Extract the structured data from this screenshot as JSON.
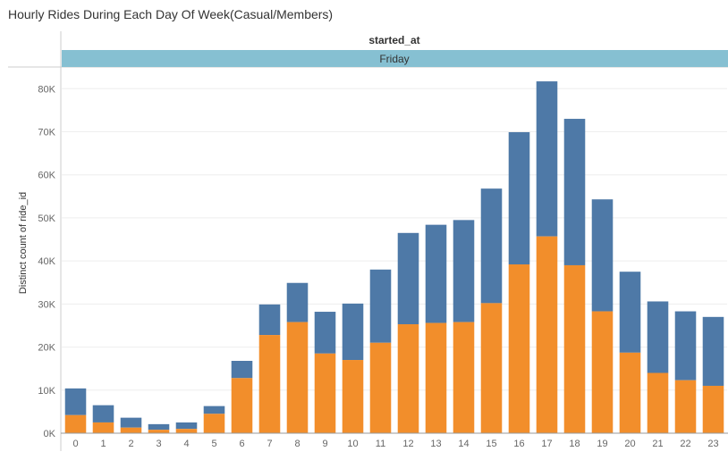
{
  "title": "Hourly Rides During Each Day Of Week(Casual/Members)",
  "column_header": "started_at",
  "facet_label": "Friday",
  "colors": {
    "members": "#4e79a7",
    "casual": "#f28e2b",
    "facet_band": "#86c0d2"
  },
  "chart_data": {
    "type": "bar",
    "stacked": true,
    "xlabel": "",
    "ylabel": "Distinct count of ride_id",
    "ylim": [
      0,
      84000
    ],
    "yticks": [
      0,
      10000,
      20000,
      30000,
      40000,
      50000,
      60000,
      70000,
      80000
    ],
    "ytick_labels": [
      "0K",
      "10K",
      "20K",
      "30K",
      "40K",
      "50K",
      "60K",
      "70K",
      "80K"
    ],
    "grid": true,
    "categories": [
      "0",
      "1",
      "2",
      "3",
      "4",
      "5",
      "6",
      "7",
      "8",
      "9",
      "10",
      "11",
      "12",
      "13",
      "14",
      "15",
      "16",
      "17",
      "18",
      "19",
      "20",
      "21",
      "22",
      "23"
    ],
    "series": [
      {
        "values": [
          4200,
          2500,
          1300,
          800,
          1000,
          4500,
          12800,
          22800,
          25800,
          18500,
          17000,
          21000,
          25300,
          25600,
          25800,
          30200,
          39200,
          45700,
          39000,
          28300,
          18700,
          14000,
          12300,
          11000
        ]
      },
      {
        "values": [
          6200,
          4000,
          2300,
          1300,
          1500,
          1800,
          4000,
          7100,
          9100,
          9700,
          13100,
          17000,
          21200,
          22800,
          23700,
          26600,
          30700,
          36000,
          34000,
          26000,
          18800,
          16600,
          16000,
          16000
        ]
      }
    ]
  }
}
